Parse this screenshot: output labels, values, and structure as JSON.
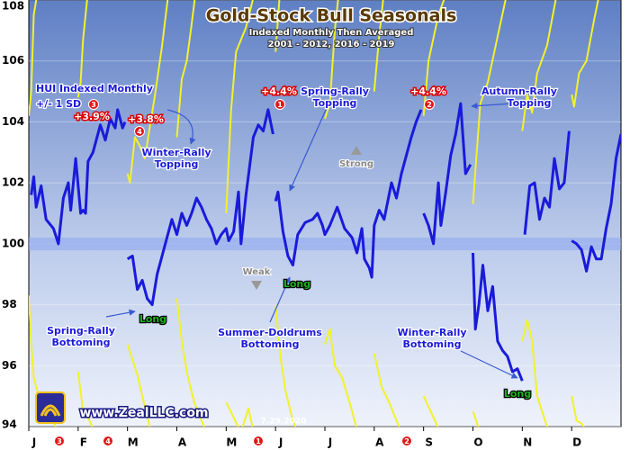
{
  "chart_data": {
    "type": "line",
    "title": "Gold-Stock Bull Seasonals",
    "subtitle": [
      "Indexed Monthly Then Averaged",
      "2001 - 2012, 2016 - 2019"
    ],
    "xlim": [
      0,
      12
    ],
    "xticks": [
      {
        "value": 0,
        "label": "J"
      },
      {
        "value": 1,
        "label": "F"
      },
      {
        "value": 2,
        "label": "M"
      },
      {
        "value": 3,
        "label": "A"
      },
      {
        "value": 4,
        "label": "M"
      },
      {
        "value": 5,
        "label": "J"
      },
      {
        "value": 6,
        "label": "J"
      },
      {
        "value": 7,
        "label": "A"
      },
      {
        "value": 8,
        "label": "S"
      },
      {
        "value": 9,
        "label": "O"
      },
      {
        "value": 10,
        "label": "N"
      },
      {
        "value": 11,
        "label": "D"
      }
    ],
    "ylim": [
      94,
      108
    ],
    "yticks": [
      94,
      96,
      98,
      100,
      102,
      104,
      106,
      108
    ],
    "grid": true,
    "series": [
      {
        "name": "HUI Indexed Monthly",
        "color": "#1a1adb",
        "x": [
          0.05,
          0.1,
          0.15,
          0.25,
          0.35,
          0.5,
          0.6,
          0.7,
          0.8,
          0.85,
          0.95,
          1.05,
          1.1,
          1.15,
          1.2,
          1.3,
          1.45,
          1.55,
          1.65,
          1.75,
          1.8,
          1.9,
          1.95,
          null,
          2.0,
          2.1,
          2.2,
          2.3,
          2.4,
          2.5,
          2.6,
          2.7,
          2.8,
          2.9,
          3.0,
          3.1,
          3.2,
          3.3,
          3.4,
          3.5,
          3.6,
          3.7,
          3.8,
          3.9,
          4.0,
          4.05,
          4.15,
          4.25,
          4.3,
          4.4,
          4.55,
          4.65,
          4.75,
          4.85,
          4.95,
          null,
          5.0,
          5.05,
          5.15,
          5.25,
          5.35,
          5.45,
          5.6,
          5.75,
          5.85,
          5.95,
          6.0,
          6.1,
          6.25,
          6.4,
          6.55,
          6.65,
          6.75,
          6.8,
          6.9,
          6.95,
          7.0,
          7.1,
          7.2,
          7.35,
          7.45,
          7.55,
          7.65,
          7.75,
          7.85,
          7.95,
          null,
          8.0,
          8.1,
          8.2,
          8.3,
          8.35,
          8.45,
          8.55,
          8.65,
          8.75,
          8.85,
          8.95,
          null,
          9.0,
          9.05,
          9.12,
          9.2,
          9.3,
          9.4,
          9.5,
          9.6,
          9.7,
          9.8,
          9.9,
          10.0,
          null,
          10.05,
          10.15,
          10.25,
          10.35,
          10.45,
          10.55,
          10.65,
          10.75,
          10.85,
          10.95,
          null,
          11.0,
          11.1,
          11.2,
          11.3,
          11.4,
          11.5,
          11.6,
          11.7,
          11.8,
          11.9,
          12.0
        ],
        "values": [
          101.6,
          102.2,
          101.2,
          101.9,
          100.8,
          100.5,
          100.0,
          101.5,
          102.0,
          101.1,
          102.8,
          101.0,
          101.1,
          101.0,
          102.7,
          103.0,
          103.9,
          103.4,
          104.1,
          103.8,
          104.4,
          103.8,
          104.0,
          null,
          99.5,
          99.6,
          98.5,
          98.8,
          98.2,
          98.0,
          99.0,
          99.6,
          100.2,
          100.8,
          100.3,
          101.0,
          100.6,
          101.0,
          101.5,
          101.2,
          100.8,
          100.5,
          100.0,
          100.3,
          100.5,
          100.1,
          100.4,
          101.7,
          100.0,
          101.6,
          103.5,
          103.9,
          103.7,
          104.4,
          103.6,
          null,
          101.4,
          101.7,
          100.4,
          99.6,
          99.3,
          100.3,
          100.7,
          100.8,
          101.0,
          100.6,
          100.3,
          100.6,
          101.2,
          100.5,
          100.2,
          99.7,
          100.5,
          99.5,
          99.2,
          98.9,
          100.6,
          101.1,
          100.8,
          102.0,
          101.5,
          102.3,
          102.9,
          103.5,
          104.0,
          104.4,
          null,
          101.0,
          100.6,
          100.0,
          102.0,
          100.6,
          101.7,
          102.9,
          103.6,
          104.6,
          102.3,
          102.6,
          null,
          99.7,
          97.2,
          98.0,
          99.3,
          97.8,
          98.6,
          96.8,
          96.5,
          96.3,
          95.8,
          95.9,
          95.5,
          null,
          100.3,
          101.9,
          102.0,
          100.8,
          101.5,
          101.2,
          102.8,
          101.8,
          102.0,
          103.7,
          null,
          100.1,
          100.0,
          99.8,
          99.1,
          99.9,
          99.5,
          99.5,
          100.5,
          101.3,
          102.8,
          103.6
        ]
      },
      {
        "name": "+/- 1 SD",
        "color": "#f2f22a",
        "x": [
          0.0,
          0.05,
          0.1,
          0.2,
          null,
          1.0,
          1.05,
          1.1,
          1.2,
          null,
          2.0,
          2.05,
          2.15,
          2.25,
          2.35,
          2.45,
          2.55,
          2.7,
          2.85,
          null,
          3.0,
          3.1,
          3.2,
          3.3,
          3.4,
          null,
          4.0,
          4.1,
          4.2,
          4.4,
          4.6,
          null,
          5.0,
          5.1,
          null,
          6.0,
          6.1,
          6.2,
          6.3,
          null,
          7.0,
          7.1,
          7.2,
          null,
          8.0,
          8.1,
          8.3,
          8.5,
          null,
          9.0,
          9.05,
          9.15,
          9.3,
          9.5,
          9.7,
          null,
          10.0,
          10.1,
          10.2,
          10.3,
          10.5,
          10.7,
          null,
          11.0,
          11.05,
          11.15,
          11.3,
          11.45,
          11.6,
          null,
          0.0,
          0.05,
          0.1,
          0.2,
          0.35,
          0.5,
          0.65,
          null,
          1.0,
          1.1,
          1.2,
          1.4,
          null,
          2.0,
          2.1,
          2.2,
          2.3,
          2.45,
          2.6,
          null,
          3.0,
          3.1,
          3.2,
          3.35,
          3.5,
          3.7,
          null,
          4.0,
          4.15,
          4.3,
          4.45,
          4.6,
          null,
          5.0,
          5.1,
          5.2,
          5.35,
          5.5,
          null,
          6.0,
          6.1,
          6.2,
          6.35,
          6.5,
          6.7,
          null,
          7.0,
          7.15,
          7.3,
          7.5,
          7.6,
          null,
          8.0,
          8.2,
          8.4,
          null,
          9.0,
          9.15,
          null,
          10.0,
          10.1,
          10.2,
          10.3,
          10.5,
          10.6,
          null,
          11.0,
          11.1,
          11.2,
          11.4
        ],
        "values": [
          104.2,
          105.0,
          107.5,
          108.5,
          null,
          104.8,
          105.3,
          106.7,
          108.3,
          null,
          102.3,
          102.0,
          103.5,
          103.2,
          102.8,
          103.8,
          104.8,
          106.5,
          108.5,
          null,
          103.5,
          105.4,
          106.0,
          107.2,
          108.5,
          null,
          101.0,
          104.4,
          106.3,
          107.1,
          108.4,
          null,
          106.3,
          108.5,
          null,
          104.1,
          104.6,
          107.0,
          108.5,
          null,
          105.0,
          106.8,
          108.3,
          null,
          104.2,
          106.0,
          107.5,
          108.4,
          null,
          101.3,
          102.4,
          104.6,
          105.3,
          106.8,
          108.3,
          null,
          103.7,
          104.9,
          104.3,
          105.6,
          106.5,
          108.2,
          null,
          104.9,
          104.5,
          105.6,
          106.0,
          107.3,
          108.5,
          null,
          98.3,
          96.7,
          95.6,
          95.0,
          94.8,
          94.2,
          93.5,
          null,
          95.8,
          94.5,
          94.3,
          93.6,
          null,
          96.7,
          96.2,
          95.7,
          95.0,
          94.0,
          93.5,
          null,
          98.2,
          96.8,
          95.8,
          94.8,
          94.2,
          93.5,
          null,
          94.8,
          94.3,
          93.8,
          94.6,
          93.5,
          null,
          98.0,
          96.3,
          95.2,
          94.2,
          93.6,
          null,
          96.7,
          97.2,
          96.0,
          95.6,
          94.8,
          93.6,
          null,
          96.4,
          95.3,
          94.8,
          94.0,
          93.5,
          null,
          95.0,
          94.3,
          93.6,
          null,
          94.5,
          93.8,
          null,
          96.8,
          97.5,
          96.8,
          95.0,
          94.0,
          93.5,
          null,
          95.0,
          94.2,
          94.1,
          93.6
        ]
      }
    ],
    "annotations": [
      "HUI Indexed Monthly",
      "+/- 1 SD",
      "+3.9%",
      "+3.8%",
      "+4.4%",
      "+4.4%",
      "Winter-Rally",
      "Topping",
      "Spring-Rally",
      "Topping",
      "Autumn-Rally",
      "Topping",
      "Strong",
      "Weak",
      "Long",
      "Long",
      "Long",
      "Spring-Rally",
      "Bottoming",
      "Summer-Doldrums",
      "Bottoming",
      "Winter-Rally",
      "Bottoming",
      "www.ZealLLC.com",
      "7.29.2020",
      "3",
      "4",
      "1",
      "2",
      "3",
      "4",
      "1",
      "2"
    ]
  }
}
